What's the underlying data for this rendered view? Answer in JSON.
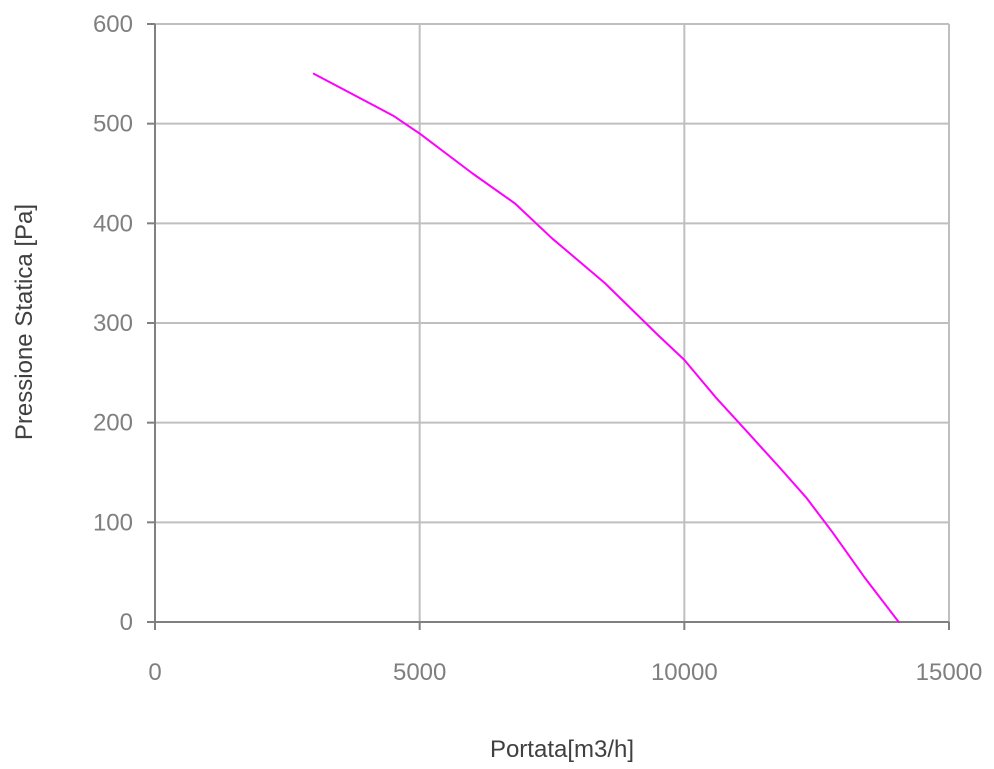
{
  "chart_data": {
    "type": "line",
    "title": "",
    "xlabel": "Portata[m3/h]",
    "ylabel": "Pressione Statica [Pa]",
    "xlim": [
      0,
      15000
    ],
    "ylim": [
      0,
      600
    ],
    "x_ticks": [
      0,
      5000,
      10000,
      15000
    ],
    "y_ticks": [
      0,
      100,
      200,
      300,
      400,
      500,
      600
    ],
    "x_tick_labels": [
      "0",
      "5000",
      "10000",
      "15000"
    ],
    "y_tick_labels": [
      "0",
      "100",
      "200",
      "300",
      "400",
      "500",
      "600"
    ],
    "grid": true,
    "legend": "none",
    "series": [
      {
        "color": "#ff00ff",
        "x": [
          3000,
          4500,
          5000,
          6000,
          6800,
          7500,
          8500,
          9500,
          10000,
          10600,
          11200,
          11800,
          12300,
          12800,
          13400,
          14050
        ],
        "y": [
          550,
          508,
          490,
          450,
          420,
          385,
          340,
          288,
          263,
          225,
          190,
          155,
          125,
          90,
          45,
          0
        ]
      }
    ]
  }
}
